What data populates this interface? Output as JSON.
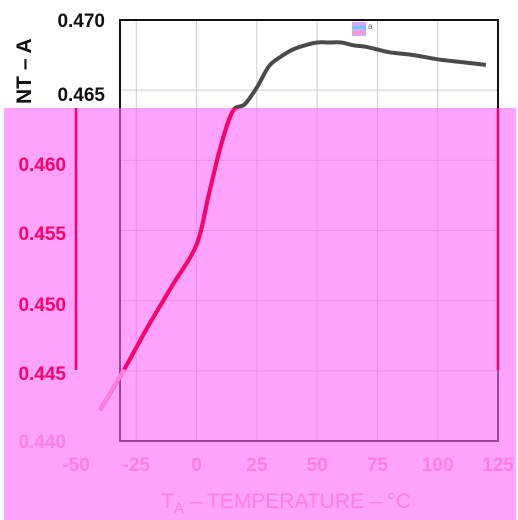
{
  "chart_data": {
    "type": "line",
    "title": "",
    "xlabel_main": "T",
    "xlabel_sub": "A",
    "xlabel_rest": " – TEMPERATURE – °C",
    "ylabel": "NT – A",
    "xlim": [
      -50,
      125
    ],
    "ylim": [
      0.44,
      0.47
    ],
    "x_ticks": [
      "-50",
      "-25",
      "0",
      "25",
      "50",
      "75",
      "100",
      "125"
    ],
    "y_ticks": [
      "0.440",
      "0.445",
      "0.450",
      "0.455",
      "0.460",
      "0.465",
      "0.470"
    ],
    "grid": true,
    "series": [
      {
        "x": [
          -40,
          -30,
          -20,
          -10,
          0,
          5,
          10,
          15,
          20,
          25,
          30,
          35,
          40,
          45,
          50,
          55,
          60,
          65,
          70,
          75,
          80,
          90,
          100,
          110,
          120
        ],
        "y": [
          0.4422,
          0.4451,
          0.4482,
          0.4511,
          0.454,
          0.4575,
          0.461,
          0.4635,
          0.464,
          0.4652,
          0.4667,
          0.4674,
          0.4679,
          0.4682,
          0.4684,
          0.4684,
          0.4684,
          0.4682,
          0.4681,
          0.4679,
          0.4677,
          0.4675,
          0.4672,
          0.467,
          0.4668
        ]
      }
    ],
    "colors": {
      "overlay": "#ff66ff",
      "curve": "#4a4a4a",
      "curve_highlight": "#ff0066",
      "tick_dark": "#111111",
      "tick_highlight": "#ff0066",
      "tick_faded": "#ff7fdf"
    }
  }
}
